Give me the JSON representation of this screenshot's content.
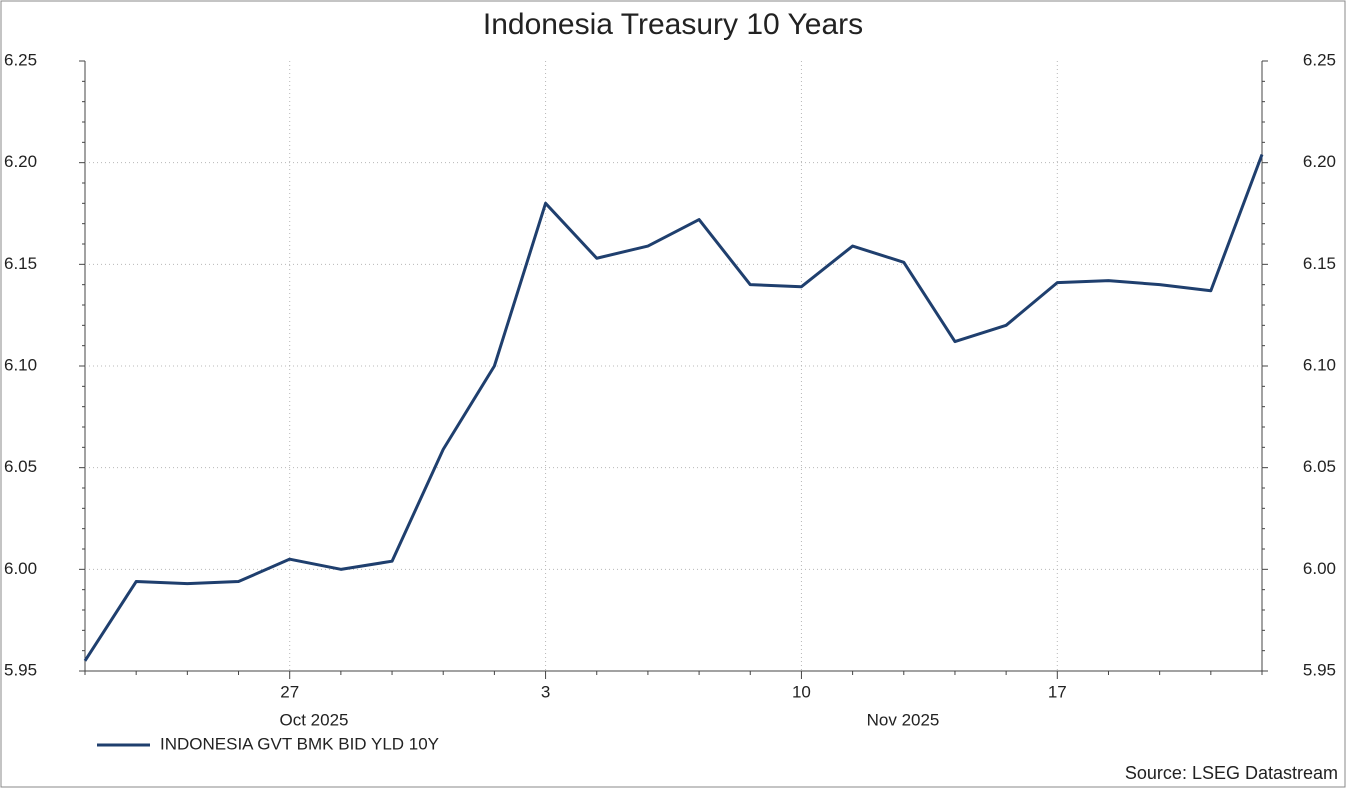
{
  "chart_data": {
    "type": "line",
    "title": "Indonesia Treasury 10 Years",
    "categories": [
      null,
      null,
      null,
      null,
      "27",
      null,
      null,
      null,
      null,
      "3",
      null,
      null,
      null,
      null,
      "10",
      null,
      null,
      null,
      null,
      "17",
      null,
      null,
      null,
      null
    ],
    "month_labels": [
      "Oct 2025",
      "Nov 2025"
    ],
    "series": [
      {
        "name": "INDONESIA GVT BMK BID YLD 10Y",
        "color": "#1f3f6e",
        "values": [
          5.955,
          5.994,
          5.993,
          5.994,
          6.005,
          6.0,
          6.004,
          6.059,
          6.1,
          6.18,
          6.153,
          6.159,
          6.172,
          6.14,
          6.139,
          6.159,
          6.151,
          6.112,
          6.12,
          6.141,
          6.142,
          6.14,
          6.137,
          6.204
        ]
      }
    ],
    "ylim": [
      5.95,
      6.25
    ],
    "yticks": [
      5.95,
      {
        "value": 6.0,
        "label": "6.00"
      },
      6.05,
      {
        "value": 6.1,
        "label": "6.10"
      },
      6.15,
      {
        "value": 6.2,
        "label": "6.20"
      },
      6.25
    ],
    "grid": true,
    "source": "Source: LSEG Datastream"
  }
}
